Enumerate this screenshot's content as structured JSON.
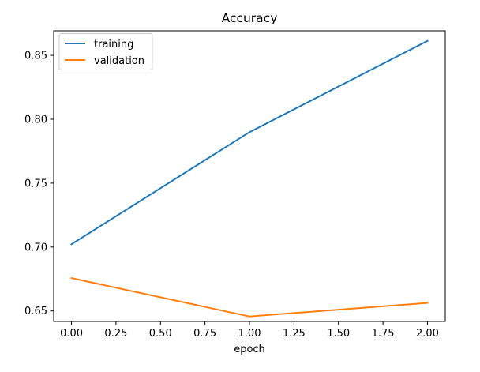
{
  "chart_data": {
    "type": "line",
    "title": "Accuracy",
    "xlabel": "epoch",
    "ylabel": "",
    "x": [
      0,
      1,
      2
    ],
    "series": [
      {
        "name": "training",
        "color": "#1f77b4",
        "values": [
          0.7022,
          0.7899,
          0.8613
        ]
      },
      {
        "name": "validation",
        "color": "#ff7f0e",
        "values": [
          0.6757,
          0.6457,
          0.6563
        ]
      }
    ],
    "xlim": [
      -0.1,
      2.1
    ],
    "ylim": [
      0.6418,
      0.8692
    ],
    "xticks": [
      0,
      0.25,
      0.5,
      0.75,
      1,
      1.25,
      1.5,
      1.75,
      2
    ],
    "xtick_labels": [
      "0.00",
      "0.25",
      "0.50",
      "0.75",
      "1.00",
      "1.25",
      "1.50",
      "1.75",
      "2.00"
    ],
    "yticks": [
      0.65,
      0.7,
      0.75,
      0.8,
      0.85
    ],
    "ytick_labels": [
      "0.65",
      "0.70",
      "0.75",
      "0.80",
      "0.85"
    ],
    "grid": false,
    "legend": "top-left"
  }
}
